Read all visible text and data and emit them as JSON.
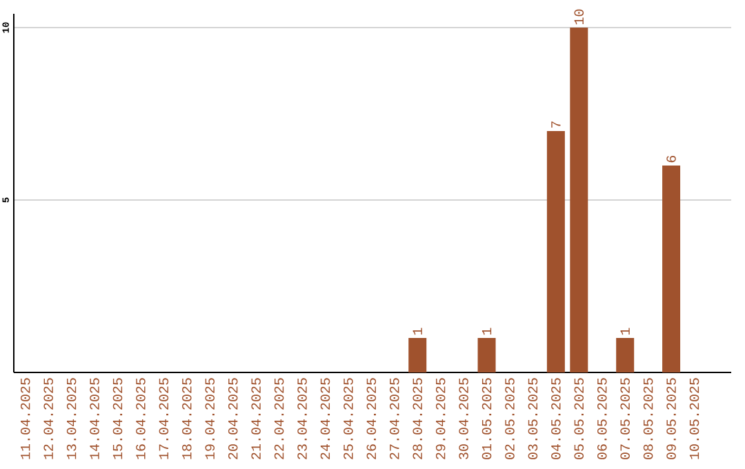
{
  "chart_data": {
    "type": "bar",
    "categories": [
      "11.04.2025",
      "12.04.2025",
      "13.04.2025",
      "14.04.2025",
      "15.04.2025",
      "16.04.2025",
      "17.04.2025",
      "18.04.2025",
      "19.04.2025",
      "20.04.2025",
      "21.04.2025",
      "22.04.2025",
      "23.04.2025",
      "24.04.2025",
      "25.04.2025",
      "26.04.2025",
      "27.04.2025",
      "28.04.2025",
      "29.04.2025",
      "30.04.2025",
      "01.05.2025",
      "02.05.2025",
      "03.05.2025",
      "04.05.2025",
      "05.05.2025",
      "06.05.2025",
      "07.05.2025",
      "08.05.2025",
      "09.05.2025",
      "10.05.2025"
    ],
    "values": [
      0,
      0,
      0,
      0,
      0,
      0,
      0,
      0,
      0,
      0,
      0,
      0,
      0,
      0,
      0,
      0,
      0,
      1,
      0,
      0,
      1,
      0,
      0,
      7,
      10,
      0,
      1,
      0,
      6,
      0
    ],
    "value_labels": [
      null,
      null,
      null,
      null,
      null,
      null,
      null,
      null,
      null,
      null,
      null,
      null,
      null,
      null,
      null,
      null,
      null,
      "1",
      null,
      null,
      "1",
      null,
      null,
      "7",
      "10",
      null,
      "1",
      null,
      "6",
      null
    ],
    "color": "#a0522d",
    "ylim": [
      0,
      10.4
    ],
    "yticks": [
      5,
      10
    ],
    "grid": "y"
  }
}
